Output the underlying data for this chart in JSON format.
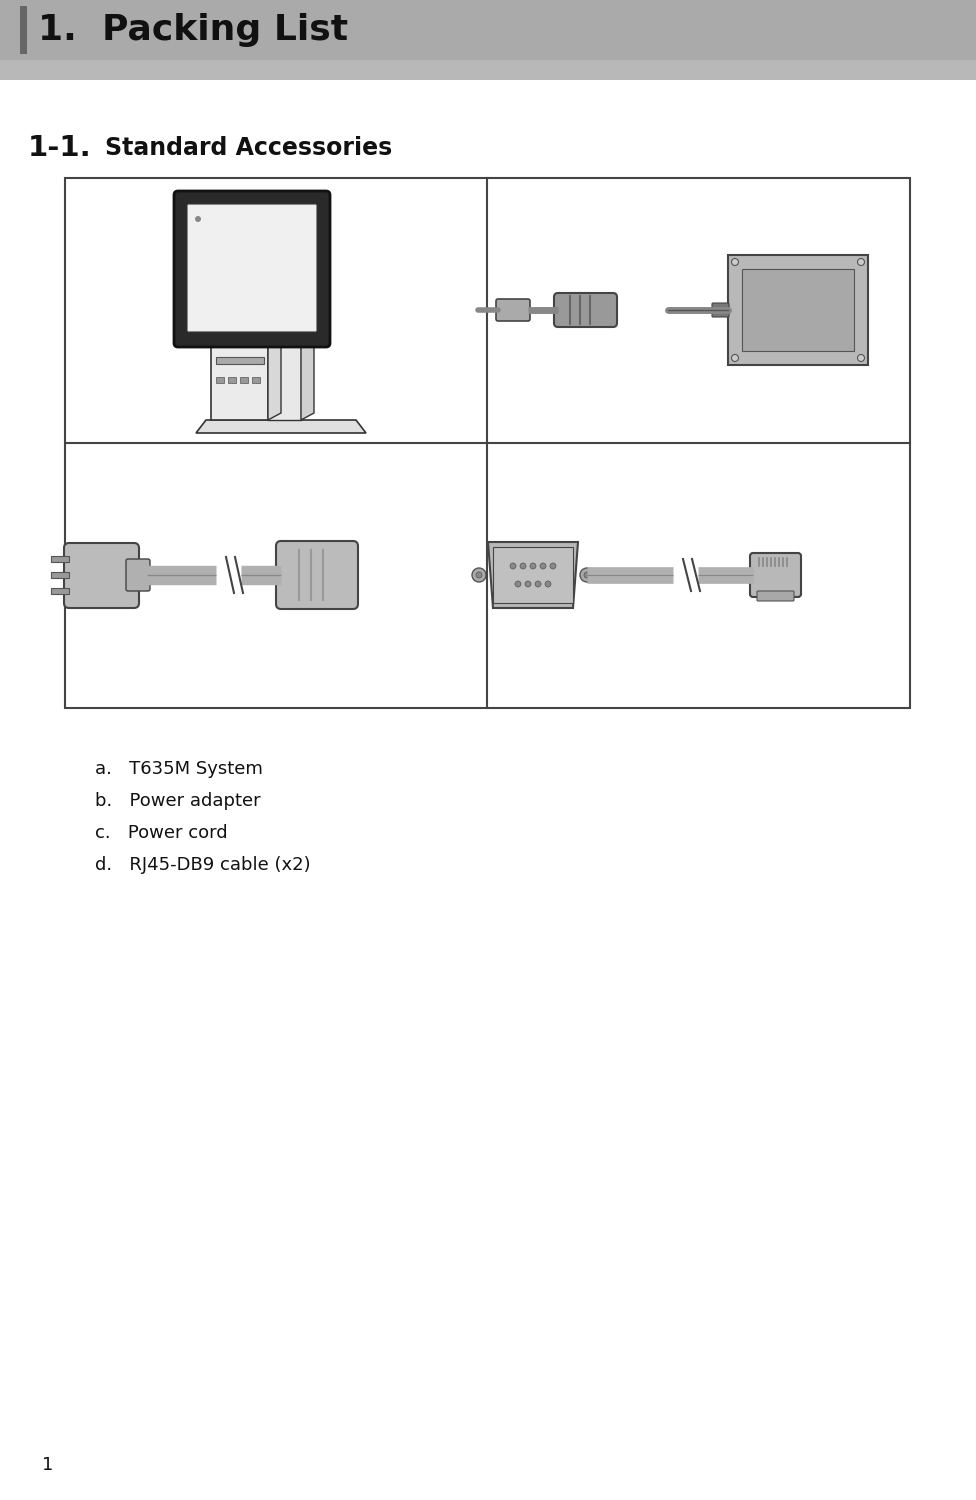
{
  "title": "1.  Packing List",
  "subtitle_num": "1-1.",
  "subtitle_text": "Standard Accessories",
  "list_items": [
    "a.   T635M System",
    "b.   Power adapter",
    "c.   Power cord",
    "d.   RJ45-DB9 cable (x2)"
  ],
  "page_number": "1",
  "header_bg": "#aaaaaa",
  "header_stripe_color": "#666666",
  "grid_border_color": "#444444",
  "bg_color": "#ffffff",
  "gray_light": "#c8c8c8",
  "gray_mid": "#aaaaaa",
  "gray_dark": "#888888",
  "gray_darker": "#666666",
  "black": "#111111",
  "white": "#ffffff"
}
